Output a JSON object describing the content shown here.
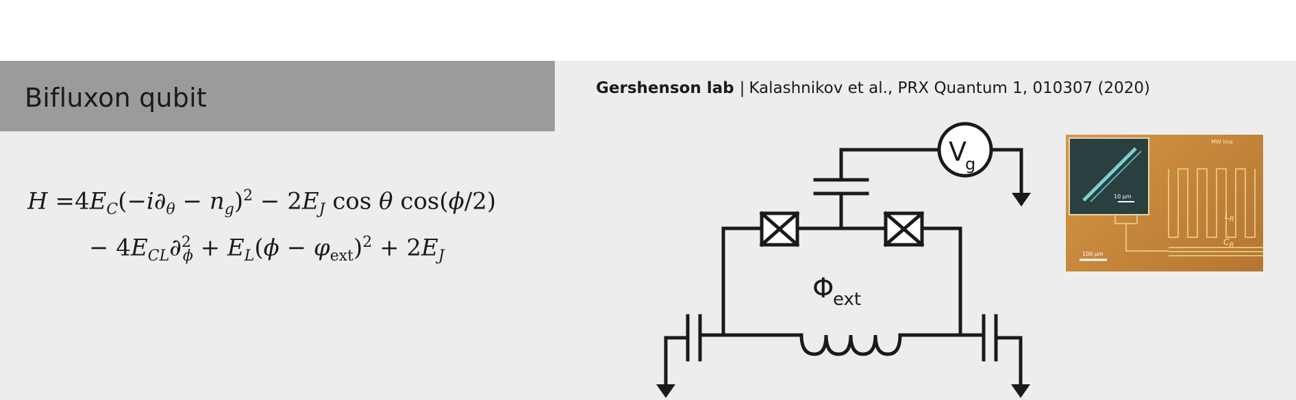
{
  "slide": {
    "title": "Bifluxon qubit",
    "citation": {
      "lab": "Gershenson lab",
      "separator": "|",
      "reference": "Kalashnikov et al., PRX Quantum 1, 010307 (2020)"
    }
  },
  "equation": {
    "line1": {
      "H": "H",
      "eq": " =4",
      "E": "E",
      "C": "C",
      "open": "(−",
      "i": "i",
      "partial": "∂",
      "theta_sub": "θ",
      "minus": " − ",
      "n": "n",
      "g": "g",
      "close": ")",
      "sq": "2",
      "term2": " − 2",
      "EJ": "E",
      "J": "J",
      "cos1": " cos ",
      "theta": "θ",
      "cos2": " cos(",
      "phi": "ϕ",
      "half": "/2)"
    },
    "line2": {
      "lead": "− 4",
      "E": "E",
      "CL": "CL",
      "partial": "∂",
      "phi_sub": "ϕ",
      "sq": "2",
      "plus": " + ",
      "EL": "E",
      "L": "L",
      "open": "(",
      "phi": "ϕ",
      "minus": " − ",
      "varphi": "φ",
      "ext": "ext",
      "close": ")",
      "sq2": "2",
      "plus2": " + 2",
      "EJ": "E",
      "J": "J"
    }
  },
  "circuit": {
    "voltage_source": {
      "symbol": "V",
      "subscript": "g"
    },
    "flux_label": {
      "symbol": "Φ",
      "subscript": "ext"
    }
  },
  "micrograph": {
    "labels": {
      "mw_line": "MW line",
      "inductor": "L",
      "inductor_sub": "R",
      "capacitor": "C",
      "capacitor_sub": "R",
      "scale_large": "100 μm",
      "scale_small": "10 μm"
    }
  },
  "colors": {
    "title_bar": "#9b9b9b",
    "slide_background": "#ededed",
    "ink": "#1a1a1a"
  }
}
